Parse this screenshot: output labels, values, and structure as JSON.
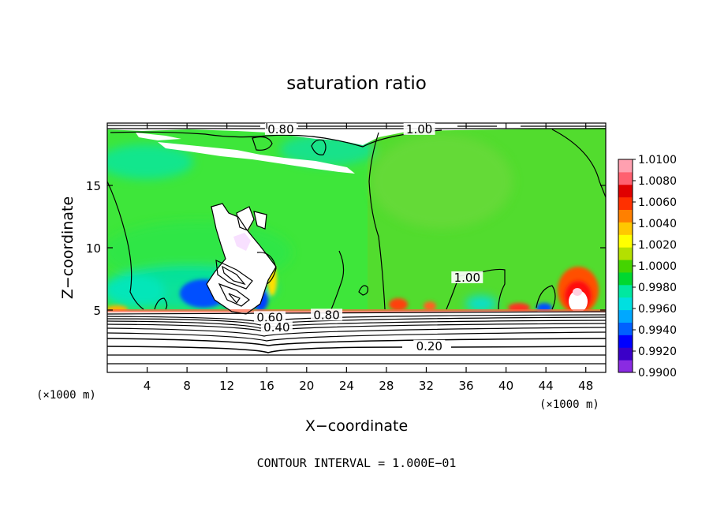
{
  "chart_data": {
    "type": "heatmap",
    "title": "saturation ratio",
    "xlabel": "X−coordinate",
    "ylabel": "Z−coordinate",
    "x_unit_left": "(×1000 m)",
    "x_unit_right": "(×1000 m)",
    "xlim": [
      0,
      50
    ],
    "ylim": [
      0,
      20
    ],
    "x_ticks": [
      4,
      8,
      12,
      16,
      20,
      24,
      28,
      32,
      36,
      40,
      44,
      48
    ],
    "y_ticks": [
      5,
      10,
      15
    ],
    "footer": "CONTOUR INTERVAL = 1.000E−01",
    "contour_interval": 0.1,
    "contour_labels": [
      {
        "text": "0.80",
        "x": 17.4,
        "z": 19.5
      },
      {
        "text": "1.00",
        "x": 31.3,
        "z": 19.5
      },
      {
        "text": "1.00",
        "x": 36.1,
        "z": 7.6
      },
      {
        "text": "0.80",
        "x": 22.0,
        "z": 4.6
      },
      {
        "text": "0.60",
        "x": 16.3,
        "z": 4.4
      },
      {
        "text": "0.40",
        "x": 17.0,
        "z": 3.6
      },
      {
        "text": "0.20",
        "x": 32.3,
        "z": 2.1
      }
    ],
    "colorbar": {
      "min": 0.99,
      "max": 1.01,
      "ticks": [
        "1.0100",
        "1.0080",
        "1.0060",
        "1.0040",
        "1.0020",
        "1.0000",
        "0.9980",
        "0.9960",
        "0.9940",
        "0.9920",
        "0.9900"
      ],
      "colors": [
        "#8a2be2",
        "#3a00c8",
        "#0000ff",
        "#0060ff",
        "#00a8ff",
        "#00e0e0",
        "#00e8a0",
        "#00d830",
        "#44d400",
        "#b4e000",
        "#ffff00",
        "#ffc800",
        "#ff8000",
        "#ff3000",
        "#e00000",
        "#ff6070",
        "#ffa0b0"
      ]
    },
    "grid": false
  }
}
